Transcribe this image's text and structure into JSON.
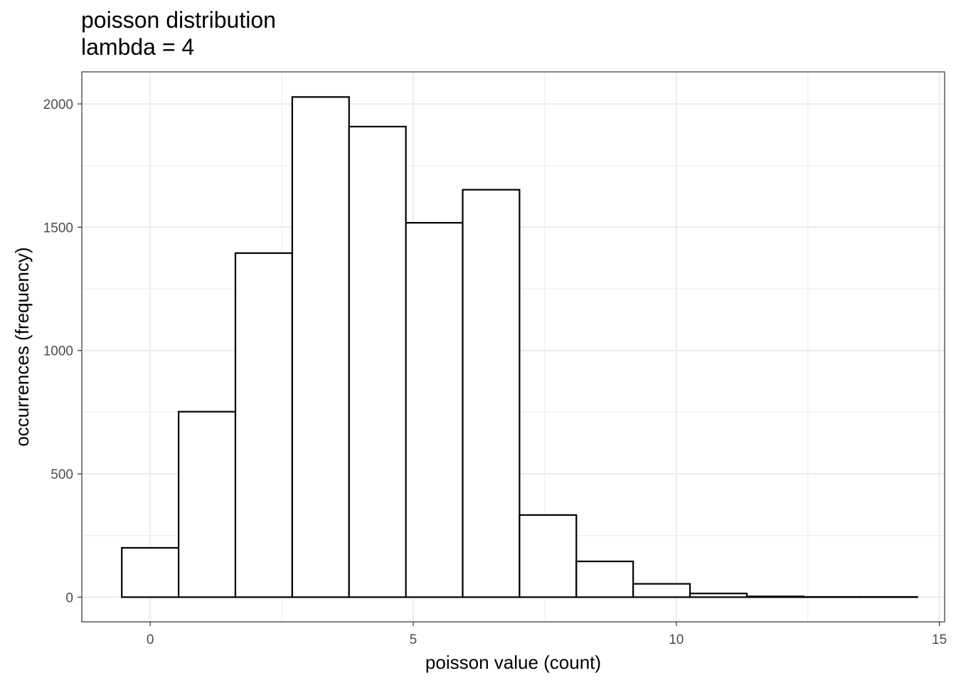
{
  "chart_data": {
    "type": "bar",
    "title": "poisson distribution",
    "subtitle": "lambda = 4",
    "xlabel": "poisson value (count)",
    "ylabel": "occurrences (frequency)",
    "xlim": [
      -1.3,
      15.1
    ],
    "ylim": [
      -100,
      2130
    ],
    "x_ticks": [
      0,
      5,
      10,
      15
    ],
    "y_ticks": [
      0,
      500,
      1000,
      1500,
      2000
    ],
    "grid": true,
    "bins": [
      {
        "x0": -0.54,
        "x1": 0.54,
        "count": 200
      },
      {
        "x0": 0.54,
        "x1": 1.62,
        "count": 752
      },
      {
        "x0": 1.62,
        "x1": 2.7,
        "count": 1395
      },
      {
        "x0": 2.7,
        "x1": 3.78,
        "count": 2028
      },
      {
        "x0": 3.78,
        "x1": 4.86,
        "count": 1908
      },
      {
        "x0": 4.86,
        "x1": 5.94,
        "count": 1518
      },
      {
        "x0": 5.94,
        "x1": 7.02,
        "count": 1652
      },
      {
        "x0": 7.02,
        "x1": 8.1,
        "count": 333
      },
      {
        "x0": 8.1,
        "x1": 9.18,
        "count": 145
      },
      {
        "x0": 9.18,
        "x1": 10.26,
        "count": 54
      },
      {
        "x0": 10.26,
        "x1": 11.34,
        "count": 15
      },
      {
        "x0": 11.34,
        "x1": 12.42,
        "count": 3
      },
      {
        "x0": 12.42,
        "x1": 13.5,
        "count": 1
      },
      {
        "x0": 13.5,
        "x1": 14.58,
        "count": 1
      }
    ],
    "colors": {
      "bar_fill": "#ffffff",
      "bar_stroke": "#000000",
      "grid": "#ebebeb",
      "panel_border": "#333333"
    }
  }
}
